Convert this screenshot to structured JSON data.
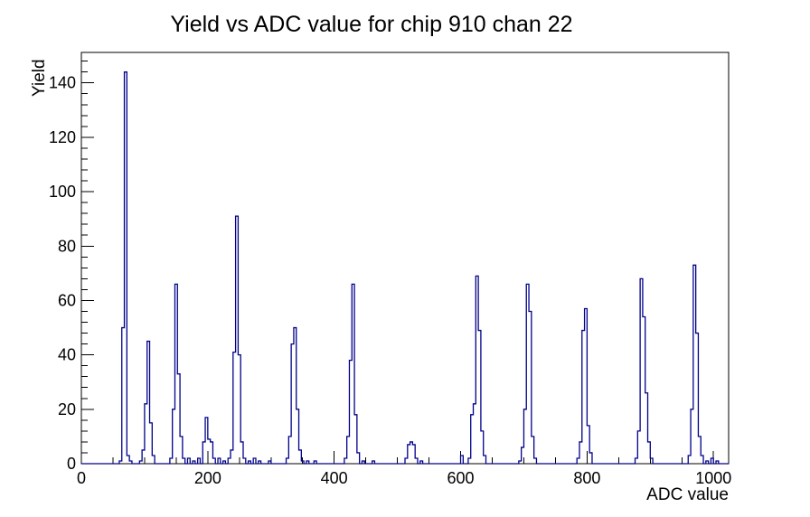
{
  "page": {
    "background": "#ffffff"
  },
  "chart_data": {
    "type": "bar",
    "subtype": "root-step-histogram",
    "title": "Yield vs ADC value for chip 910 chan 22",
    "xlabel": "ADC value",
    "ylabel": "Yield",
    "xlim": [
      0,
      1024
    ],
    "ylim": [
      0,
      151.2
    ],
    "x_major_ticks": [
      0,
      200,
      400,
      600,
      800,
      1000
    ],
    "x_minor_step": 50,
    "y_major_ticks": [
      0,
      20,
      40,
      60,
      80,
      100,
      120,
      140
    ],
    "y_minor_step": 4,
    "grid": false,
    "legend": false,
    "bin_width": 4,
    "colors": {
      "line": "#00008b",
      "frame": "#000000",
      "text": "#000000",
      "background": "#ffffff"
    },
    "peaks_summary": [
      {
        "adc": 68,
        "yield": 144
      },
      {
        "adc": 104,
        "yield": 45
      },
      {
        "adc": 150,
        "yield": 66
      },
      {
        "adc": 196,
        "yield": 17
      },
      {
        "adc": 245,
        "yield": 91
      },
      {
        "adc": 337,
        "yield": 50
      },
      {
        "adc": 429,
        "yield": 66
      },
      {
        "adc": 521,
        "yield": 8
      },
      {
        "adc": 625,
        "yield": 69
      },
      {
        "adc": 705,
        "yield": 66
      },
      {
        "adc": 797,
        "yield": 57
      },
      {
        "adc": 886,
        "yield": 68
      },
      {
        "adc": 969,
        "yield": 73
      }
    ],
    "bins": [
      [
        60,
        1
      ],
      [
        64,
        50
      ],
      [
        68,
        144
      ],
      [
        72,
        3
      ],
      [
        76,
        1
      ],
      [
        92,
        1
      ],
      [
        96,
        5
      ],
      [
        100,
        22
      ],
      [
        104,
        45
      ],
      [
        108,
        15
      ],
      [
        112,
        3
      ],
      [
        140,
        2
      ],
      [
        144,
        20
      ],
      [
        148,
        66
      ],
      [
        152,
        33
      ],
      [
        156,
        10
      ],
      [
        160,
        2
      ],
      [
        168,
        2
      ],
      [
        176,
        1
      ],
      [
        184,
        2
      ],
      [
        192,
        8
      ],
      [
        196,
        17
      ],
      [
        200,
        9
      ],
      [
        204,
        8
      ],
      [
        208,
        2
      ],
      [
        216,
        2
      ],
      [
        224,
        1
      ],
      [
        232,
        2
      ],
      [
        236,
        5
      ],
      [
        240,
        41
      ],
      [
        244,
        91
      ],
      [
        248,
        40
      ],
      [
        252,
        8
      ],
      [
        256,
        2
      ],
      [
        264,
        1
      ],
      [
        272,
        2
      ],
      [
        280,
        1
      ],
      [
        296,
        1
      ],
      [
        324,
        2
      ],
      [
        328,
        10
      ],
      [
        332,
        44
      ],
      [
        336,
        50
      ],
      [
        340,
        20
      ],
      [
        344,
        5
      ],
      [
        348,
        1
      ],
      [
        356,
        1
      ],
      [
        368,
        1
      ],
      [
        416,
        2
      ],
      [
        420,
        10
      ],
      [
        424,
        38
      ],
      [
        428,
        66
      ],
      [
        432,
        18
      ],
      [
        436,
        4
      ],
      [
        444,
        1
      ],
      [
        460,
        1
      ],
      [
        512,
        2
      ],
      [
        516,
        7
      ],
      [
        520,
        8
      ],
      [
        524,
        7
      ],
      [
        528,
        2
      ],
      [
        536,
        1
      ],
      [
        600,
        3
      ],
      [
        612,
        2
      ],
      [
        616,
        18
      ],
      [
        620,
        22
      ],
      [
        624,
        69
      ],
      [
        628,
        49
      ],
      [
        632,
        12
      ],
      [
        636,
        3
      ],
      [
        692,
        1
      ],
      [
        696,
        6
      ],
      [
        700,
        20
      ],
      [
        704,
        66
      ],
      [
        708,
        56
      ],
      [
        712,
        10
      ],
      [
        716,
        2
      ],
      [
        784,
        2
      ],
      [
        788,
        8
      ],
      [
        792,
        49
      ],
      [
        796,
        57
      ],
      [
        800,
        14
      ],
      [
        804,
        4
      ],
      [
        876,
        2
      ],
      [
        880,
        12
      ],
      [
        884,
        68
      ],
      [
        888,
        54
      ],
      [
        892,
        26
      ],
      [
        896,
        8
      ],
      [
        900,
        2
      ],
      [
        960,
        3
      ],
      [
        964,
        20
      ],
      [
        968,
        73
      ],
      [
        972,
        48
      ],
      [
        976,
        10
      ],
      [
        980,
        3
      ],
      [
        988,
        1
      ],
      [
        996,
        2
      ],
      [
        1004,
        1
      ]
    ]
  }
}
